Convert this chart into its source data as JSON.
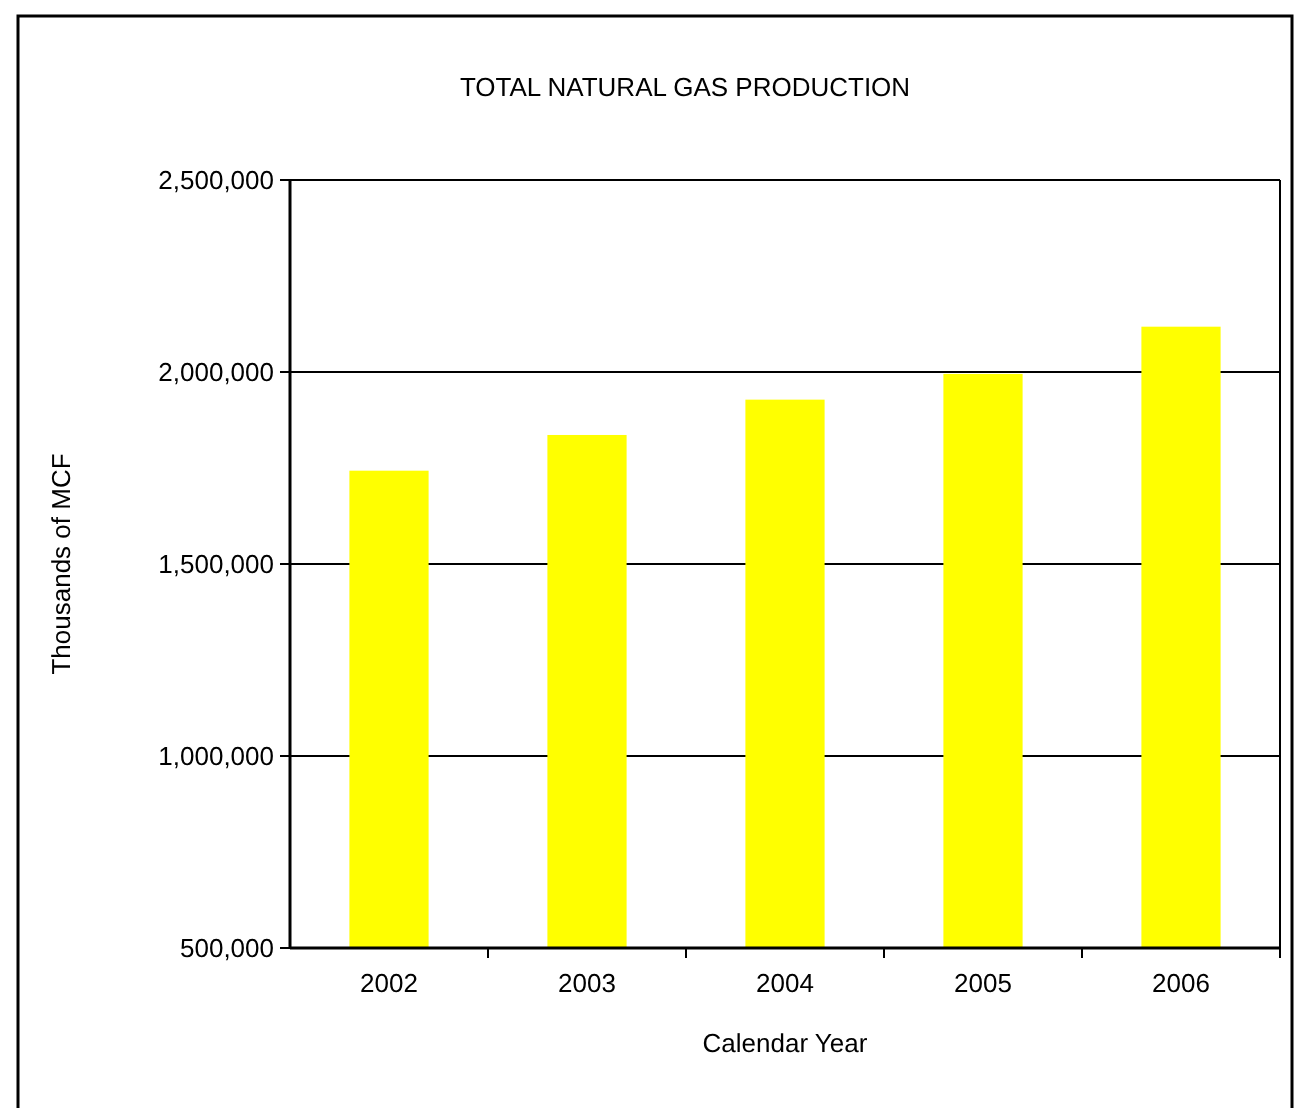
{
  "chart_data": {
    "type": "bar",
    "title": "TOTAL NATURAL GAS PRODUCTION",
    "xlabel": "Calendar Year",
    "ylabel": "Thousands of MCF",
    "categories": [
      "2002",
      "2003",
      "2004",
      "2005",
      "2006"
    ],
    "values": [
      1743000,
      1836000,
      1928000,
      1995000,
      2118000
    ],
    "color": "#ffff00",
    "ylim": [
      500000,
      2500000
    ],
    "yticks": [
      {
        "value": 500000,
        "label": "500,000"
      },
      {
        "value": 1000000,
        "label": "1,000,000"
      },
      {
        "value": 1500000,
        "label": "1,500,000"
      },
      {
        "value": 2000000,
        "label": "2,000,000"
      },
      {
        "value": 2500000,
        "label": "2,500,000"
      }
    ],
    "grid": "y"
  }
}
